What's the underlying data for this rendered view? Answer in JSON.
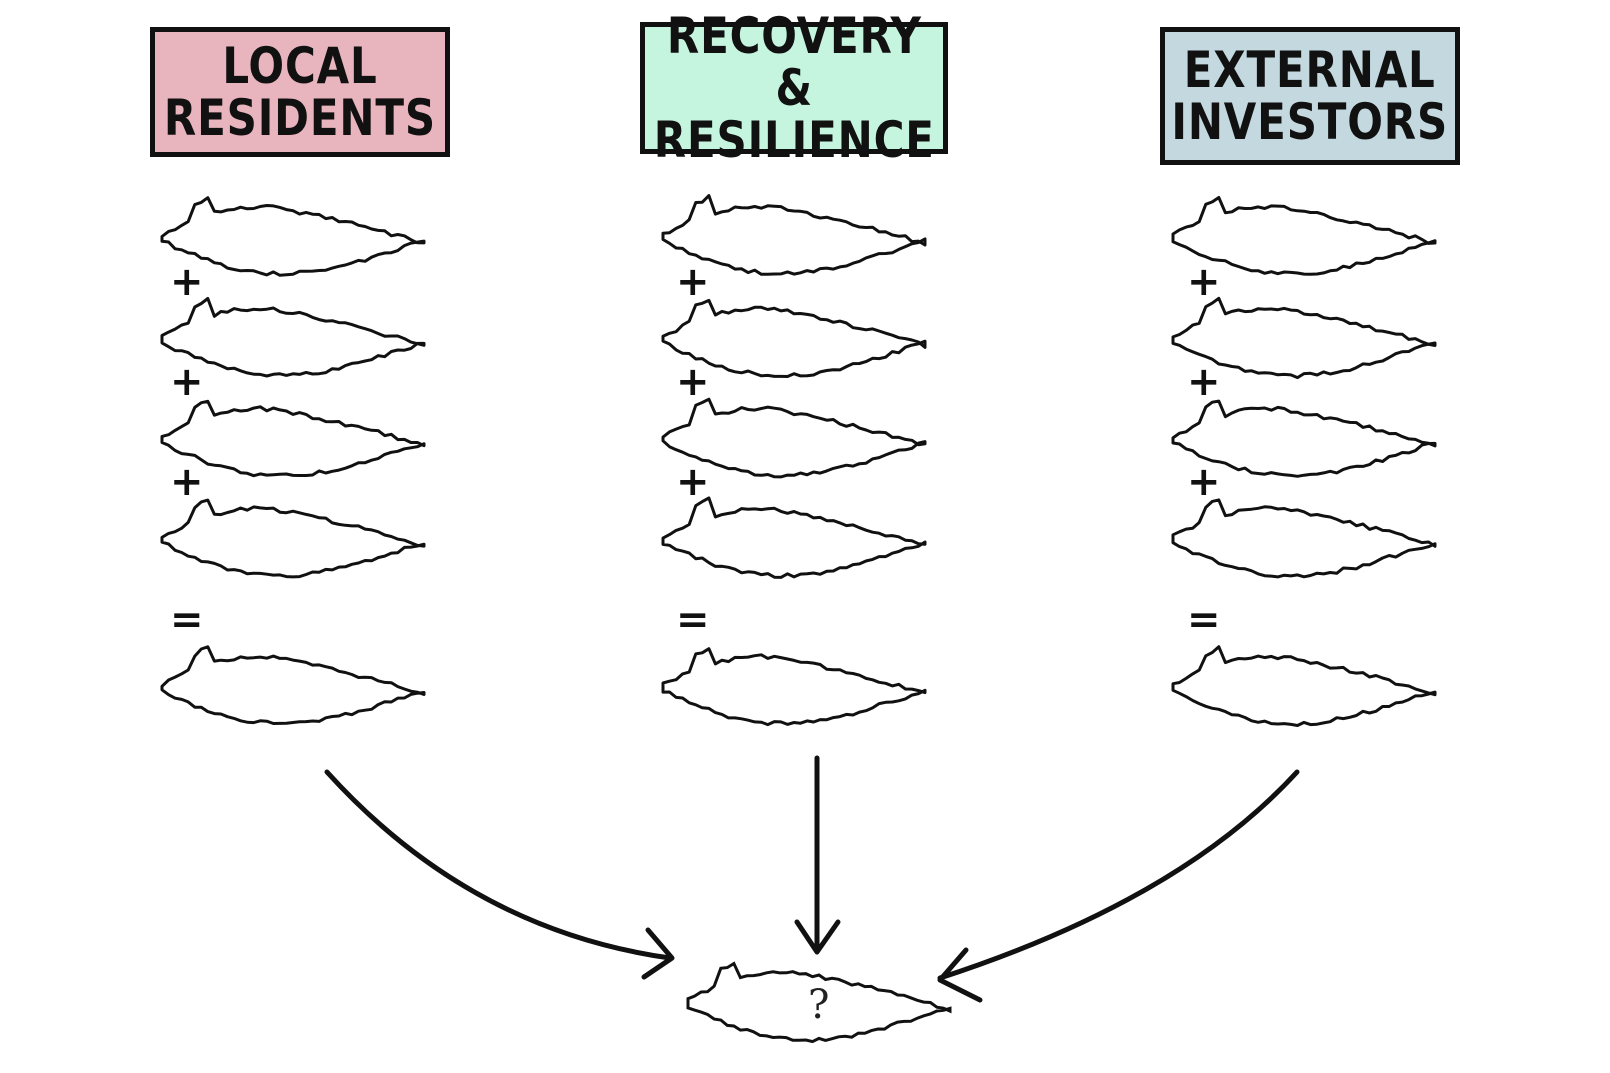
{
  "columns": [
    {
      "title": "LOCAL\nRESIDENTS",
      "color": "#e8b4bd"
    },
    {
      "title": "RECOVERY &\nRESILIENCE",
      "color": "#c6f5df"
    },
    {
      "title": "EXTERNAL\nINVESTORS",
      "color": "#c4d8e0"
    }
  ],
  "operators": {
    "plus": "+",
    "equals": "="
  },
  "result": {
    "label": "?"
  }
}
